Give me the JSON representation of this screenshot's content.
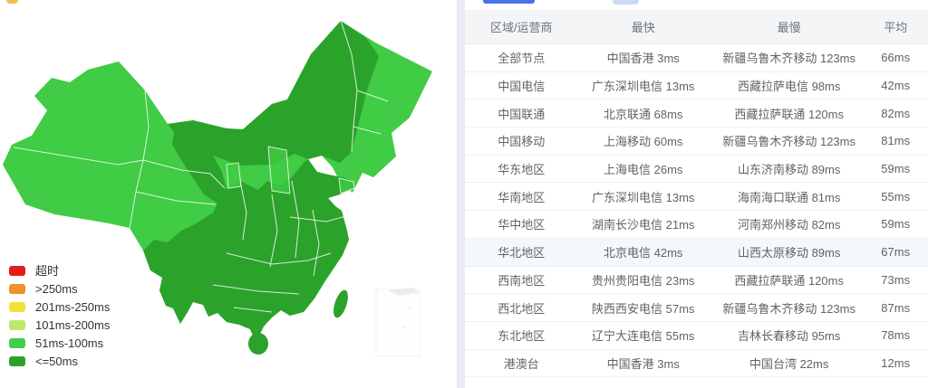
{
  "map": {
    "name": "china-latency-choropleth",
    "colors": {
      "normal_51_100ms": "#40cc45",
      "fast_le_50ms": "#2ba32b"
    }
  },
  "legend": {
    "items": [
      {
        "label": "超时",
        "color": "#e21b1b"
      },
      {
        "label": ">250ms",
        "color": "#f0902e"
      },
      {
        "label": "201ms-250ms",
        "color": "#f2e13c"
      },
      {
        "label": "101ms-200ms",
        "color": "#bce96d"
      },
      {
        "label": "51ms-100ms",
        "color": "#3ed04d"
      },
      {
        "label": "<=50ms",
        "color": "#2ba32b"
      }
    ]
  },
  "table": {
    "headers": [
      "区域/运营商",
      "最快",
      "最慢",
      "平均"
    ],
    "rows": [
      {
        "region": "全部节点",
        "fastest": "中国香港 3ms",
        "slowest": "新疆乌鲁木齐移动 123ms",
        "avg": "66ms",
        "highlighted": false
      },
      {
        "region": "中国电信",
        "fastest": "广东深圳电信 13ms",
        "slowest": "西藏拉萨电信 98ms",
        "avg": "42ms",
        "highlighted": false
      },
      {
        "region": "中国联通",
        "fastest": "北京联通 68ms",
        "slowest": "西藏拉萨联通 120ms",
        "avg": "82ms",
        "highlighted": false
      },
      {
        "region": "中国移动",
        "fastest": "上海移动 60ms",
        "slowest": "新疆乌鲁木齐移动 123ms",
        "avg": "81ms",
        "highlighted": false
      },
      {
        "region": "华东地区",
        "fastest": "上海电信 26ms",
        "slowest": "山东济南移动 89ms",
        "avg": "59ms",
        "highlighted": false
      },
      {
        "region": "华南地区",
        "fastest": "广东深圳电信 13ms",
        "slowest": "海南海口联通 81ms",
        "avg": "55ms",
        "highlighted": false
      },
      {
        "region": "华中地区",
        "fastest": "湖南长沙电信 21ms",
        "slowest": "河南郑州移动 82ms",
        "avg": "59ms",
        "highlighted": false
      },
      {
        "region": "华北地区",
        "fastest": "北京电信 42ms",
        "slowest": "山西太原移动 89ms",
        "avg": "67ms",
        "highlighted": true
      },
      {
        "region": "西南地区",
        "fastest": "贵州贵阳电信 23ms",
        "slowest": "西藏拉萨联通 120ms",
        "avg": "73ms",
        "highlighted": false
      },
      {
        "region": "西北地区",
        "fastest": "陕西西安电信 57ms",
        "slowest": "新疆乌鲁木齐移动 123ms",
        "avg": "87ms",
        "highlighted": false
      },
      {
        "region": "东北地区",
        "fastest": "辽宁大连电信 55ms",
        "slowest": "吉林长春移动 95ms",
        "avg": "78ms",
        "highlighted": false
      },
      {
        "region": "港澳台",
        "fastest": "中国香港 3ms",
        "slowest": "中国台湾 22ms",
        "avg": "12ms",
        "highlighted": false
      }
    ]
  }
}
